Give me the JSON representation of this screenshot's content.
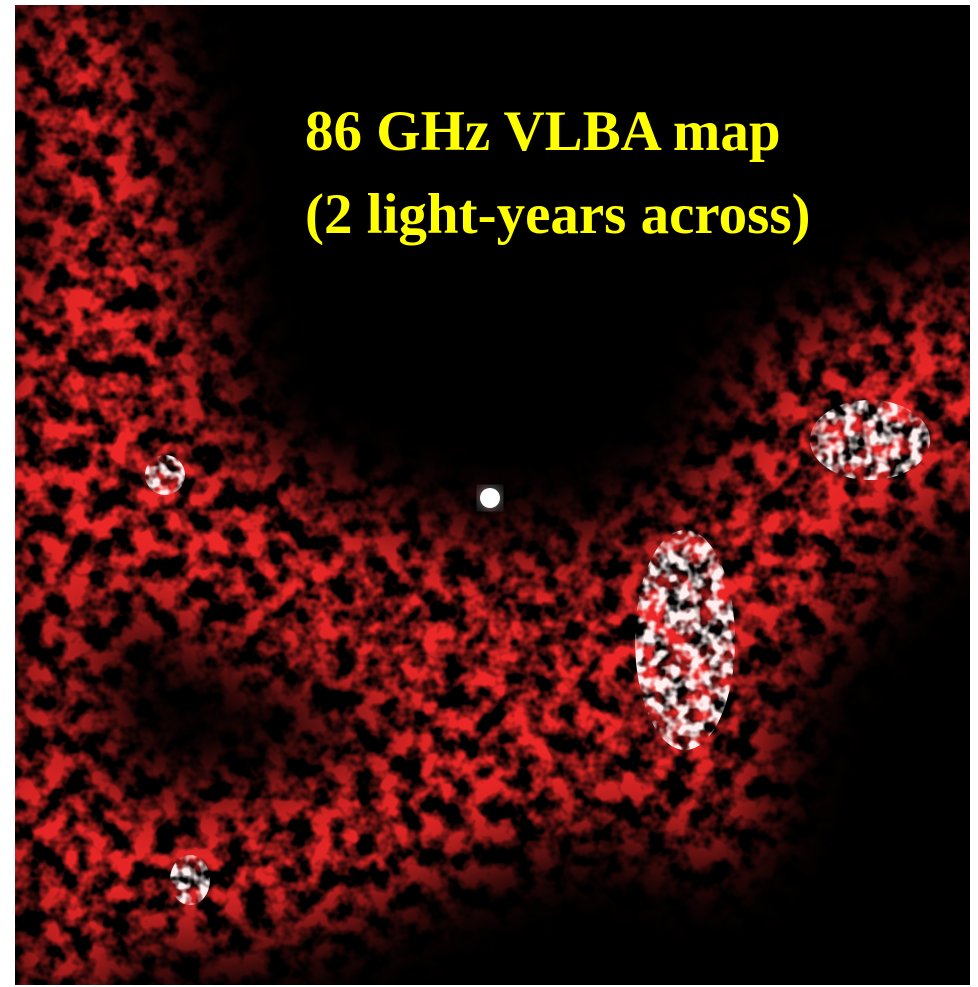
{
  "caption": {
    "line1": "86 GHz VLBA map",
    "line2": "(2 light-years across)"
  }
}
